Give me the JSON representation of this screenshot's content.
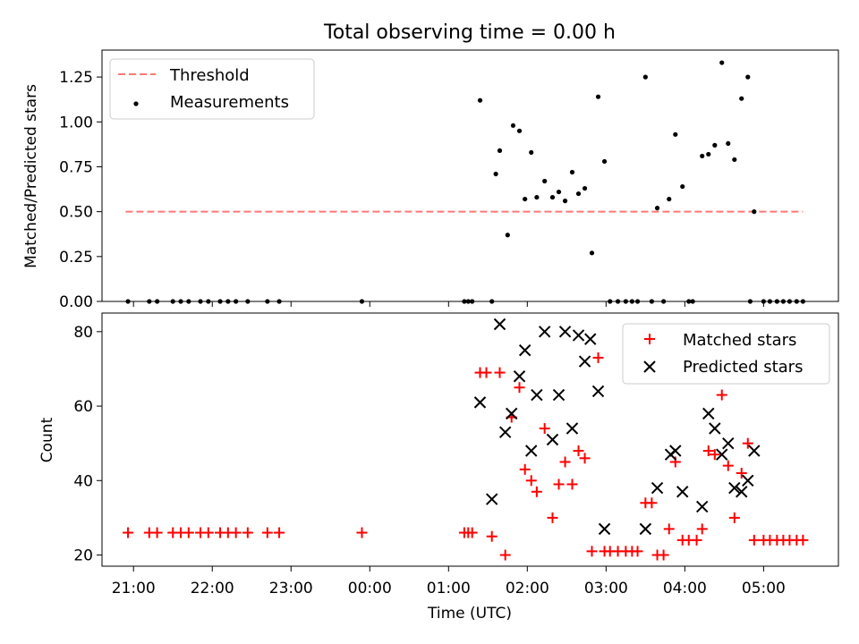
{
  "chart_data": [
    {
      "type": "scatter",
      "title": "Total observing time = 0.00 h",
      "xlabel": "",
      "ylabel": "Matched/Predicted stars",
      "xlim": [
        20.6,
        29.95
      ],
      "ylim": [
        0,
        1.4
      ],
      "yticks": [
        0,
        0.25,
        0.5,
        0.75,
        1.0,
        1.25
      ],
      "ytick_labels": [
        "0.00",
        "0.25",
        "0.50",
        "0.75",
        "1.00",
        "1.25"
      ],
      "threshold": {
        "value": 0.5,
        "x_range": [
          20.9,
          29.5
        ],
        "color": "#ff7777",
        "style": "dashed"
      },
      "legend": {
        "position": "top-left",
        "entries": [
          {
            "label": "Threshold",
            "kind": "dashed-line",
            "color": "#ff7777"
          },
          {
            "label": "Measurements",
            "kind": "dot",
            "color": "#000000"
          }
        ]
      },
      "series": [
        {
          "name": "Measurements",
          "marker": "dot",
          "color": "#000000",
          "points": [
            [
              20.93,
              0
            ],
            [
              21.2,
              0
            ],
            [
              21.3,
              0
            ],
            [
              21.5,
              0
            ],
            [
              21.6,
              0
            ],
            [
              21.7,
              0
            ],
            [
              21.85,
              0
            ],
            [
              21.95,
              0
            ],
            [
              22.1,
              0
            ],
            [
              22.2,
              0
            ],
            [
              22.3,
              0
            ],
            [
              22.45,
              0
            ],
            [
              22.7,
              0
            ],
            [
              22.85,
              0
            ],
            [
              23.9,
              0
            ],
            [
              25.2,
              0
            ],
            [
              25.25,
              0
            ],
            [
              25.3,
              0
            ],
            [
              25.4,
              1.12
            ],
            [
              25.55,
              0
            ],
            [
              25.6,
              0.71
            ],
            [
              25.65,
              0.84
            ],
            [
              25.75,
              0.37
            ],
            [
              25.82,
              0.98
            ],
            [
              25.9,
              0.95
            ],
            [
              25.97,
              0.57
            ],
            [
              26.05,
              0.83
            ],
            [
              26.12,
              0.58
            ],
            [
              26.22,
              0.67
            ],
            [
              26.32,
              0.58
            ],
            [
              26.4,
              0.61
            ],
            [
              26.48,
              0.56
            ],
            [
              26.57,
              0.72
            ],
            [
              26.65,
              0.6
            ],
            [
              26.73,
              0.63
            ],
            [
              26.82,
              0.27
            ],
            [
              26.9,
              1.14
            ],
            [
              26.98,
              0.78
            ],
            [
              27.05,
              0
            ],
            [
              27.15,
              0
            ],
            [
              27.25,
              0
            ],
            [
              27.33,
              0
            ],
            [
              27.4,
              0
            ],
            [
              27.5,
              1.25
            ],
            [
              27.58,
              0
            ],
            [
              27.65,
              0.52
            ],
            [
              27.73,
              0
            ],
            [
              27.8,
              0.57
            ],
            [
              27.88,
              0.93
            ],
            [
              27.97,
              0.64
            ],
            [
              28.05,
              0
            ],
            [
              28.1,
              0
            ],
            [
              28.22,
              0.81
            ],
            [
              28.3,
              0.82
            ],
            [
              28.38,
              0.87
            ],
            [
              28.47,
              1.33
            ],
            [
              28.55,
              0.88
            ],
            [
              28.63,
              0.79
            ],
            [
              28.72,
              1.13
            ],
            [
              28.8,
              1.25
            ],
            [
              28.88,
              0.5
            ],
            [
              28.83,
              0
            ],
            [
              29.0,
              0
            ],
            [
              29.08,
              0
            ],
            [
              29.17,
              0
            ],
            [
              29.25,
              0
            ],
            [
              29.33,
              0
            ],
            [
              29.42,
              0
            ],
            [
              29.5,
              0
            ]
          ]
        }
      ]
    },
    {
      "type": "scatter",
      "title": "",
      "xlabel": "Time (UTC)",
      "ylabel": "Count",
      "xlim": [
        20.6,
        29.95
      ],
      "ylim": [
        17,
        85
      ],
      "yticks": [
        20,
        40,
        60,
        80
      ],
      "xticks": [
        21,
        22,
        23,
        24,
        25,
        26,
        27,
        28,
        29
      ],
      "xtick_labels": [
        "21:00",
        "22:00",
        "23:00",
        "00:00",
        "01:00",
        "02:00",
        "03:00",
        "04:00",
        "05:00"
      ],
      "legend": {
        "position": "top-right",
        "entries": [
          {
            "label": "Matched stars",
            "kind": "plus",
            "color": "#ff0000"
          },
          {
            "label": "Predicted stars",
            "kind": "cross",
            "color": "#000000"
          }
        ]
      },
      "series": [
        {
          "name": "Matched stars",
          "marker": "plus",
          "color": "#ff0000",
          "points": [
            [
              20.93,
              26
            ],
            [
              21.2,
              26
            ],
            [
              21.3,
              26
            ],
            [
              21.5,
              26
            ],
            [
              21.6,
              26
            ],
            [
              21.7,
              26
            ],
            [
              21.85,
              26
            ],
            [
              21.95,
              26
            ],
            [
              22.1,
              26
            ],
            [
              22.2,
              26
            ],
            [
              22.3,
              26
            ],
            [
              22.45,
              26
            ],
            [
              22.7,
              26
            ],
            [
              22.85,
              26
            ],
            [
              23.9,
              26
            ],
            [
              25.2,
              26
            ],
            [
              25.25,
              26
            ],
            [
              25.3,
              26
            ],
            [
              25.4,
              69
            ],
            [
              25.48,
              69
            ],
            [
              25.55,
              25
            ],
            [
              25.65,
              69
            ],
            [
              25.72,
              20
            ],
            [
              25.8,
              57
            ],
            [
              25.9,
              65
            ],
            [
              25.97,
              43
            ],
            [
              26.05,
              40
            ],
            [
              26.12,
              37
            ],
            [
              26.22,
              54
            ],
            [
              26.32,
              30
            ],
            [
              26.4,
              39
            ],
            [
              26.48,
              45
            ],
            [
              26.57,
              39
            ],
            [
              26.65,
              48
            ],
            [
              26.73,
              46
            ],
            [
              26.82,
              21
            ],
            [
              26.9,
              73
            ],
            [
              26.98,
              21
            ],
            [
              27.05,
              21
            ],
            [
              27.15,
              21
            ],
            [
              27.25,
              21
            ],
            [
              27.33,
              21
            ],
            [
              27.4,
              21
            ],
            [
              27.5,
              34
            ],
            [
              27.58,
              34
            ],
            [
              27.65,
              20
            ],
            [
              27.73,
              20
            ],
            [
              27.8,
              27
            ],
            [
              27.88,
              45
            ],
            [
              27.97,
              24
            ],
            [
              28.05,
              24
            ],
            [
              28.15,
              24
            ],
            [
              28.22,
              27
            ],
            [
              28.3,
              48
            ],
            [
              28.38,
              47
            ],
            [
              28.47,
              63
            ],
            [
              28.55,
              44
            ],
            [
              28.63,
              30
            ],
            [
              28.72,
              42
            ],
            [
              28.8,
              50
            ],
            [
              28.88,
              24
            ],
            [
              29.0,
              24
            ],
            [
              29.08,
              24
            ],
            [
              29.17,
              24
            ],
            [
              29.25,
              24
            ],
            [
              29.33,
              24
            ],
            [
              29.42,
              24
            ],
            [
              29.5,
              24
            ]
          ]
        },
        {
          "name": "Predicted stars",
          "marker": "cross",
          "color": "#000000",
          "points": [
            [
              25.4,
              61
            ],
            [
              25.55,
              35
            ],
            [
              25.65,
              82
            ],
            [
              25.72,
              53
            ],
            [
              25.8,
              58
            ],
            [
              25.9,
              68
            ],
            [
              25.97,
              75
            ],
            [
              26.05,
              48
            ],
            [
              26.12,
              63
            ],
            [
              26.22,
              80
            ],
            [
              26.32,
              51
            ],
            [
              26.4,
              63
            ],
            [
              26.48,
              80
            ],
            [
              26.57,
              54
            ],
            [
              26.65,
              79
            ],
            [
              26.73,
              72
            ],
            [
              26.8,
              78
            ],
            [
              26.9,
              64
            ],
            [
              26.98,
              27
            ],
            [
              27.5,
              27
            ],
            [
              27.65,
              38
            ],
            [
              27.82,
              47
            ],
            [
              27.88,
              48
            ],
            [
              27.97,
              37
            ],
            [
              28.22,
              33
            ],
            [
              28.3,
              58
            ],
            [
              28.38,
              54
            ],
            [
              28.47,
              47
            ],
            [
              28.55,
              50
            ],
            [
              28.63,
              38
            ],
            [
              28.72,
              37
            ],
            [
              28.8,
              40
            ],
            [
              28.88,
              48
            ]
          ]
        }
      ]
    }
  ]
}
